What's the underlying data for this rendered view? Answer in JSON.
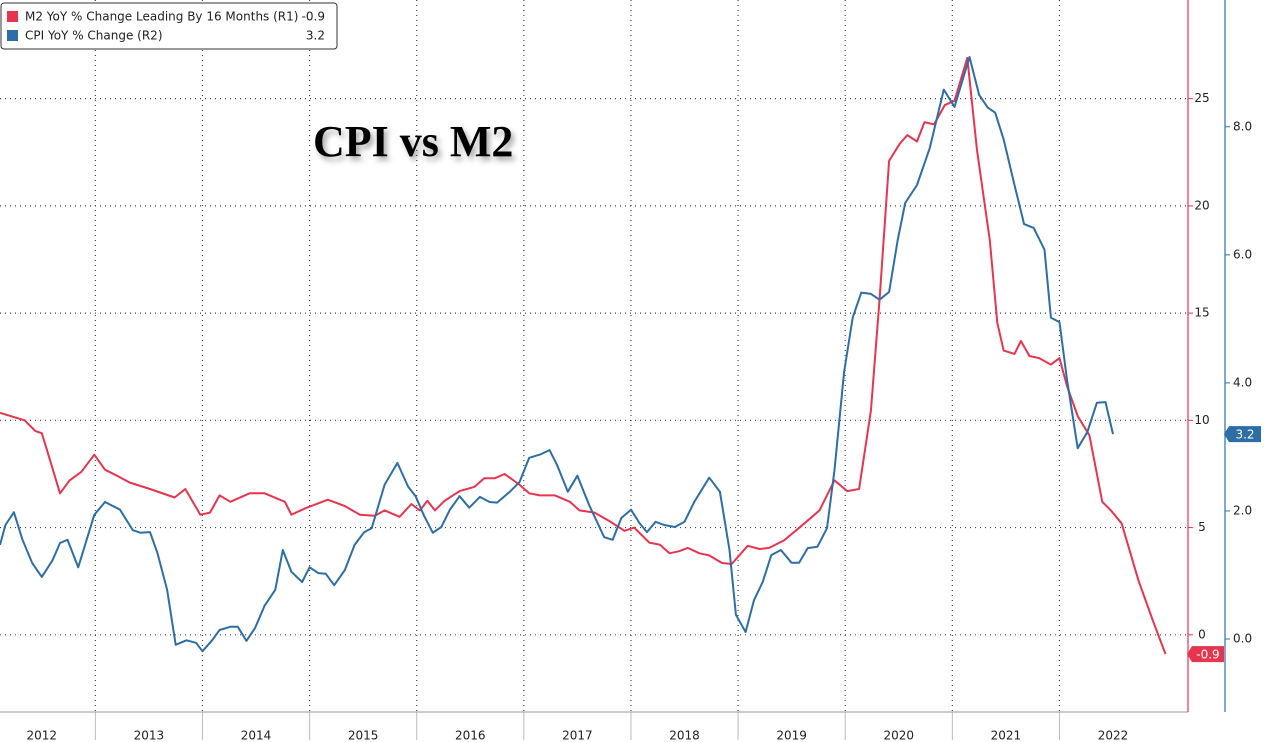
{
  "chart_data": {
    "type": "line",
    "title": "CPI vs M2",
    "xlim": [
      2012.11,
      2023.2
    ],
    "xticks": [
      2012,
      2013,
      2014,
      2015,
      2016,
      2017,
      2018,
      2019,
      2020,
      2021,
      2022
    ],
    "ylim": [
      -3.6,
      29.6
    ],
    "yticks": [
      0,
      5,
      10,
      15,
      20,
      25
    ],
    "y2lim": [
      -1.14,
      9.98
    ],
    "y2ticks": [
      {
        "value": 0,
        "label": "0.0"
      },
      {
        "value": 2,
        "label": "2.0"
      },
      {
        "value": 4,
        "label": "4.0"
      },
      {
        "value": 6,
        "label": "6.0"
      },
      {
        "value": 8,
        "label": "8.0"
      }
    ],
    "grid": true,
    "legend": "top-left",
    "series": [
      {
        "name": "M2 YoY % Change Leading By 16 Months (R1)",
        "color": "#e8354f",
        "axis": "y",
        "x": [
          2012.11,
          2012.34,
          2012.44,
          2012.5,
          2012.58,
          2012.67,
          2012.76,
          2012.87,
          2012.99,
          2013.09,
          2013.21,
          2013.32,
          2013.51,
          2013.74,
          2013.84,
          2013.98,
          2014.07,
          2014.16,
          2014.26,
          2014.44,
          2014.58,
          2014.77,
          2014.83,
          2014.96,
          2015.17,
          2015.33,
          2015.47,
          2015.61,
          2015.7,
          2015.84,
          2015.95,
          2016.03,
          2016.1,
          2016.17,
          2016.26,
          2016.4,
          2016.54,
          2016.63,
          2016.73,
          2016.82,
          2016.96,
          2017.05,
          2017.15,
          2017.29,
          2017.43,
          2017.52,
          2017.66,
          2017.8,
          2017.94,
          2018.03,
          2018.17,
          2018.27,
          2018.36,
          2018.45,
          2018.53,
          2018.64,
          2018.73,
          2018.85,
          2018.94,
          2019.09,
          2019.2,
          2019.29,
          2019.43,
          2019.62,
          2019.76,
          2019.85,
          2019.9,
          2020.02,
          2020.13,
          2020.24,
          2020.32,
          2020.41,
          2020.51,
          2020.58,
          2020.67,
          2020.74,
          2020.83,
          2020.93,
          2021.02,
          2021.14,
          2021.23,
          2021.35,
          2021.42,
          2021.48,
          2021.58,
          2021.64,
          2021.72,
          2021.81,
          2021.92,
          2022.0,
          2022.07,
          2022.17,
          2022.28,
          2022.4,
          2022.48,
          2022.58,
          2022.74,
          2022.88,
          2022.99
        ],
        "values": [
          10.35,
          10.0,
          9.5,
          9.4,
          8.1,
          6.6,
          7.2,
          7.6,
          8.4,
          7.7,
          7.4,
          7.1,
          6.8,
          6.4,
          6.8,
          5.6,
          5.7,
          6.5,
          6.2,
          6.6,
          6.6,
          6.2,
          5.6,
          5.9,
          6.3,
          6.0,
          5.6,
          5.55,
          5.8,
          5.5,
          6.1,
          5.8,
          6.25,
          5.8,
          6.25,
          6.7,
          6.9,
          7.3,
          7.3,
          7.5,
          7.0,
          6.6,
          6.5,
          6.5,
          6.2,
          5.8,
          5.7,
          5.3,
          4.85,
          5.0,
          4.3,
          4.2,
          3.8,
          3.9,
          4.05,
          3.8,
          3.7,
          3.35,
          3.3,
          4.15,
          4.0,
          4.05,
          4.4,
          5.2,
          5.8,
          6.7,
          7.2,
          6.7,
          6.8,
          10.45,
          15.6,
          22.1,
          22.9,
          23.3,
          23.0,
          23.9,
          23.8,
          24.7,
          24.9,
          26.9,
          22.6,
          18.4,
          14.55,
          13.25,
          13.1,
          13.7,
          13.0,
          12.9,
          12.6,
          12.9,
          11.6,
          10.2,
          9.3,
          6.2,
          5.8,
          5.2,
          2.5,
          0.56,
          -0.9
        ]
      },
      {
        "name": "CPI YoY % Change (R2)",
        "color": "#2e6ea6",
        "axis": "y2",
        "x": [
          2012.11,
          2012.16,
          2012.24,
          2012.32,
          2012.41,
          2012.5,
          2012.6,
          2012.67,
          2012.74,
          2012.84,
          2012.99,
          2013.09,
          2013.23,
          2013.35,
          2013.42,
          2013.51,
          2013.58,
          2013.67,
          2013.75,
          2013.85,
          2013.94,
          2014.0,
          2014.09,
          2014.16,
          2014.26,
          2014.33,
          2014.41,
          2014.49,
          2014.58,
          2014.68,
          2014.75,
          2014.83,
          2014.93,
          2015.0,
          2015.08,
          2015.15,
          2015.23,
          2015.33,
          2015.42,
          2015.51,
          2015.58,
          2015.7,
          2015.82,
          2015.92,
          2015.99,
          2016.07,
          2016.15,
          2016.23,
          2016.31,
          2016.4,
          2016.49,
          2016.59,
          2016.68,
          2016.75,
          2016.87,
          2016.96,
          2017.05,
          2017.15,
          2017.24,
          2017.31,
          2017.41,
          2017.5,
          2017.61,
          2017.75,
          2017.83,
          2017.91,
          2018.0,
          2018.08,
          2018.15,
          2018.23,
          2018.31,
          2018.41,
          2018.5,
          2018.59,
          2018.73,
          2018.83,
          2018.92,
          2018.98,
          2019.07,
          2019.15,
          2019.23,
          2019.31,
          2019.4,
          2019.5,
          2019.57,
          2019.65,
          2019.74,
          2019.83,
          2019.9,
          2019.99,
          2020.07,
          2020.15,
          2020.24,
          2020.32,
          2020.41,
          2020.49,
          2020.56,
          2020.67,
          2020.79,
          2020.92,
          2021.02,
          2021.16,
          2021.25,
          2021.33,
          2021.4,
          2021.48,
          2021.58,
          2021.67,
          2021.76,
          2021.86,
          2021.92,
          2022.0,
          2022.07,
          2022.17,
          2022.26,
          2022.35,
          2022.43,
          2022.5
        ],
        "values": [
          1.47,
          1.78,
          1.98,
          1.55,
          1.19,
          0.97,
          1.23,
          1.5,
          1.55,
          1.12,
          1.94,
          2.14,
          2.02,
          1.7,
          1.66,
          1.67,
          1.34,
          0.77,
          -0.09,
          -0.02,
          -0.06,
          -0.19,
          -0.02,
          0.14,
          0.19,
          0.19,
          -0.03,
          0.17,
          0.52,
          0.77,
          1.39,
          1.05,
          0.89,
          1.12,
          1.03,
          1.02,
          0.84,
          1.08,
          1.47,
          1.67,
          1.73,
          2.41,
          2.75,
          2.38,
          2.23,
          1.92,
          1.66,
          1.75,
          2.02,
          2.23,
          2.05,
          2.22,
          2.14,
          2.13,
          2.3,
          2.45,
          2.83,
          2.88,
          2.95,
          2.72,
          2.3,
          2.55,
          2.09,
          1.59,
          1.55,
          1.89,
          2.02,
          1.81,
          1.67,
          1.83,
          1.78,
          1.75,
          1.83,
          2.14,
          2.52,
          2.3,
          1.39,
          0.38,
          0.11,
          0.61,
          0.89,
          1.31,
          1.39,
          1.19,
          1.19,
          1.42,
          1.44,
          1.73,
          2.64,
          4.17,
          5.02,
          5.41,
          5.39,
          5.3,
          5.42,
          6.23,
          6.81,
          7.09,
          7.67,
          8.58,
          8.31,
          9.09,
          8.5,
          8.3,
          8.22,
          7.8,
          7.09,
          6.48,
          6.42,
          6.08,
          5.02,
          4.95,
          4.05,
          2.98,
          3.23,
          3.69,
          3.7,
          3.2
        ]
      }
    ]
  }
}
